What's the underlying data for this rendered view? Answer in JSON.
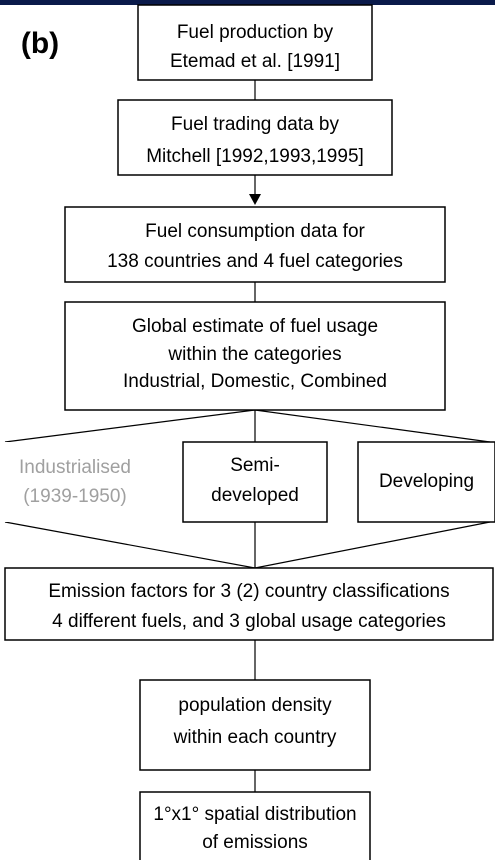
{
  "label": "(b)",
  "nodes": [
    {
      "lines": [
        "Fuel production by",
        "Etemad et al. [1991]"
      ]
    },
    {
      "lines": [
        "Fuel trading data by",
        "Mitchell [1992,1993,1995]"
      ]
    },
    {
      "lines": [
        "Fuel consumption data for",
        "138 countries and 4 fuel categories"
      ]
    },
    {
      "lines": [
        "Global estimate of fuel usage",
        "within the categories",
        "Industrial, Domestic, Combined"
      ]
    },
    {
      "lines": [
        "Industrialised",
        "(1939-1950)"
      ]
    },
    {
      "lines": [
        "Semi-",
        "developed"
      ]
    },
    {
      "lines": [
        "Developing"
      ]
    },
    {
      "lines": [
        "Emission factors for 3 (2) country classifications",
        "4 different fuels, and 3 global usage categories"
      ]
    },
    {
      "lines": [
        "population density",
        "within each country"
      ]
    },
    {
      "lines": [
        "1°x1° spatial distribution",
        "of emissions"
      ]
    }
  ]
}
